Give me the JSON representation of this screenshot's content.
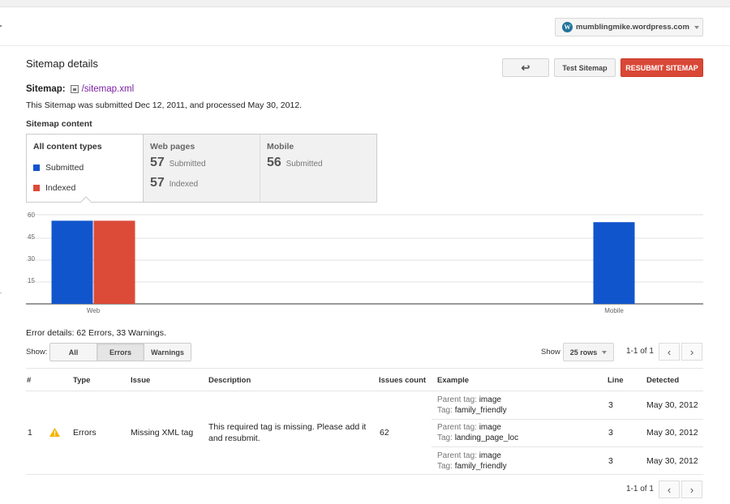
{
  "header": {
    "site": "mumblingmike.wordpress.com",
    "wp_glyph": "W"
  },
  "page": {
    "title": "Sitemap details",
    "back_icon": "↩",
    "test_button": "Test Sitemap",
    "resubmit_button": "RESUBMIT SITEMAP"
  },
  "sitemap": {
    "label": "Sitemap:",
    "path": "/sitemap.xml",
    "submitted_text": "This Sitemap was submitted Dec 12, 2011, and processed May 30, 2012.",
    "content_heading": "Sitemap content"
  },
  "tabs": {
    "all": {
      "title": "All content types",
      "legend_submitted": "Submitted",
      "legend_indexed": "Indexed"
    },
    "web": {
      "title": "Web pages",
      "submitted_value": "57",
      "submitted_label": "Submitted",
      "indexed_value": "57",
      "indexed_label": "Indexed"
    },
    "mobile": {
      "title": "Mobile",
      "submitted_value": "56",
      "submitted_label": "Submitted"
    }
  },
  "colors": {
    "submitted": "#1155cc",
    "indexed": "#dc4a38",
    "accent_red": "#d94837",
    "link": "#7b1fa2"
  },
  "chart_data": {
    "type": "bar",
    "categories": [
      "Web",
      "Mobile"
    ],
    "series": [
      {
        "name": "Submitted",
        "values": [
          57,
          56
        ]
      },
      {
        "name": "Indexed",
        "values": [
          57,
          null
        ]
      }
    ],
    "y_ticks": [
      "60",
      "45",
      "30",
      "15"
    ],
    "ylim": [
      0,
      60
    ],
    "grid": true
  },
  "errors": {
    "title": "Error details: 62 Errors, 33 Warnings.",
    "show_label": "Show:",
    "filters": [
      "All",
      "Errors",
      "Warnings"
    ],
    "active_filter": "Errors",
    "rows_label": "Show",
    "rows_value": "25 rows",
    "pager_text": "1-1 of 1",
    "prev_icon": "‹",
    "next_icon": "›"
  },
  "table": {
    "headers": [
      "#",
      "Type",
      "Issue",
      "Description",
      "Issues count",
      "Example",
      "Line",
      "Detected"
    ],
    "row": {
      "index": "1",
      "type": "Errors",
      "issue": "Missing XML tag",
      "description_line1": "This required tag is missing. Please add it",
      "description_line2": "and resubmit.",
      "count": "62"
    },
    "examples": [
      {
        "parent_label": "Parent tag:",
        "parent": "image",
        "tag_label": "Tag:",
        "tag": "family_friendly",
        "line": "3",
        "detected": "May 30, 2012"
      },
      {
        "parent_label": "Parent tag:",
        "parent": "image",
        "tag_label": "Tag:",
        "tag": "landing_page_loc",
        "line": "3",
        "detected": "May 30, 2012"
      },
      {
        "parent_label": "Parent tag:",
        "parent": "image",
        "tag_label": "Tag:",
        "tag": "family_friendly",
        "line": "3",
        "detected": "May 30, 2012"
      }
    ]
  }
}
